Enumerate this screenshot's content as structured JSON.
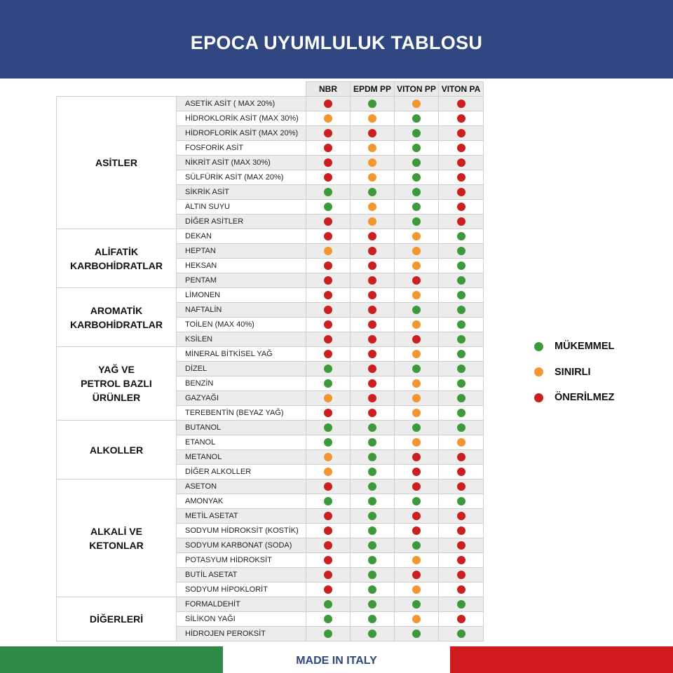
{
  "title": "EPOCA UYUMLULUK TABLOSU",
  "colors": {
    "G": "#3c9a3a",
    "O": "#f2962f",
    "R": "#cc1f1f",
    "banner": "#2f4680"
  },
  "columns": [
    "NBR",
    "EPDM PP",
    "VITON PP",
    "VITON PA"
  ],
  "groups": [
    {
      "name": "ASİTLER",
      "rows": [
        {
          "item": "ASETİK ASİT ( MAX 20%)",
          "values": [
            "R",
            "G",
            "O",
            "R"
          ]
        },
        {
          "item": "HİDROKLORİK ASİT (MAX 30%)",
          "values": [
            "O",
            "O",
            "G",
            "R"
          ]
        },
        {
          "item": "HİDROFLORİK ASİT (MAX 20%)",
          "values": [
            "R",
            "R",
            "G",
            "R"
          ]
        },
        {
          "item": "FOSFORİK ASİT",
          "values": [
            "R",
            "O",
            "G",
            "R"
          ]
        },
        {
          "item": "NİKRİT ASİT (MAX 30%)",
          "values": [
            "R",
            "O",
            "G",
            "R"
          ]
        },
        {
          "item": "SÜLFÜRİK ASİT (MAX 20%)",
          "values": [
            "R",
            "O",
            "G",
            "R"
          ]
        },
        {
          "item": "SİKRİK ASİT",
          "values": [
            "G",
            "G",
            "G",
            "R"
          ]
        },
        {
          "item": "ALTIN SUYU",
          "values": [
            "G",
            "O",
            "G",
            "R"
          ]
        },
        {
          "item": "DİĞER ASİTLER",
          "values": [
            "R",
            "O",
            "G",
            "R"
          ]
        }
      ]
    },
    {
      "name": "ALİFATİK\nKARBOHİDRATLAR",
      "rows": [
        {
          "item": "DEKAN",
          "values": [
            "R",
            "R",
            "O",
            "G"
          ]
        },
        {
          "item": "HEPTAN",
          "values": [
            "O",
            "R",
            "O",
            "G"
          ]
        },
        {
          "item": "HEKSAN",
          "values": [
            "R",
            "R",
            "O",
            "G"
          ]
        },
        {
          "item": "PENTAM",
          "values": [
            "R",
            "R",
            "R",
            "G"
          ]
        }
      ]
    },
    {
      "name": "AROMATİK\nKARBOHİDRATLAR",
      "rows": [
        {
          "item": "LİMONEN",
          "values": [
            "R",
            "R",
            "O",
            "G"
          ]
        },
        {
          "item": "NAFTALİN",
          "values": [
            "R",
            "R",
            "G",
            "G"
          ]
        },
        {
          "item": "TOİLEN (MAX 40%)",
          "values": [
            "R",
            "R",
            "O",
            "G"
          ]
        },
        {
          "item": "KSİLEN",
          "values": [
            "R",
            "R",
            "R",
            "G"
          ]
        }
      ]
    },
    {
      "name": "YAĞ VE\nPETROL BAZLI\nÜRÜNLER",
      "rows": [
        {
          "item": "MİNERAL BİTKİSEL YAĞ",
          "values": [
            "R",
            "R",
            "O",
            "G"
          ]
        },
        {
          "item": "DİZEL",
          "values": [
            "G",
            "R",
            "G",
            "G"
          ]
        },
        {
          "item": "BENZİN",
          "values": [
            "G",
            "R",
            "O",
            "G"
          ]
        },
        {
          "item": "GAZYAĞI",
          "values": [
            "O",
            "R",
            "O",
            "G"
          ]
        },
        {
          "item": "TEREBENTİN (BEYAZ YAĞ)",
          "values": [
            "R",
            "R",
            "O",
            "G"
          ]
        }
      ]
    },
    {
      "name": "ALKOLLER",
      "rows": [
        {
          "item": "BUTANOL",
          "values": [
            "G",
            "G",
            "G",
            "G"
          ]
        },
        {
          "item": "ETANOL",
          "values": [
            "G",
            "G",
            "O",
            "O"
          ]
        },
        {
          "item": "METANOL",
          "values": [
            "O",
            "G",
            "R",
            "R"
          ]
        },
        {
          "item": "DİĞER ALKOLLER",
          "values": [
            "O",
            "G",
            "R",
            "R"
          ]
        }
      ]
    },
    {
      "name": "ALKALİ VE\nKETONLAR",
      "rows": [
        {
          "item": "ASETON",
          "values": [
            "R",
            "G",
            "R",
            "R"
          ]
        },
        {
          "item": "AMONYAK",
          "values": [
            "G",
            "G",
            "G",
            "G"
          ]
        },
        {
          "item": "METİL ASETAT",
          "values": [
            "R",
            "G",
            "R",
            "R"
          ]
        },
        {
          "item": "SODYUM HİDROKSİT (KOSTİK)",
          "values": [
            "R",
            "G",
            "R",
            "R"
          ]
        },
        {
          "item": "SODYUM KARBONAT (SODA)",
          "values": [
            "R",
            "G",
            "G",
            "R"
          ]
        },
        {
          "item": "POTASYUM HİDROKSİT",
          "values": [
            "R",
            "G",
            "O",
            "R"
          ]
        },
        {
          "item": "BUTİL ASETAT",
          "values": [
            "R",
            "G",
            "R",
            "R"
          ]
        },
        {
          "item": "SODYUM HİPOKLORİT",
          "values": [
            "R",
            "G",
            "O",
            "R"
          ]
        }
      ]
    },
    {
      "name": "DİĞERLERİ",
      "rows": [
        {
          "item": "FORMALDEHİT",
          "values": [
            "G",
            "G",
            "G",
            "G"
          ]
        },
        {
          "item": "SİLİKON YAĞI",
          "values": [
            "G",
            "G",
            "O",
            "R"
          ]
        },
        {
          "item": "HİDROJEN PEROKSİT",
          "values": [
            "G",
            "G",
            "G",
            "G"
          ]
        }
      ]
    }
  ],
  "legend": [
    {
      "code": "G",
      "label": "MÜKEMMEL"
    },
    {
      "code": "O",
      "label": "SINIRLI"
    },
    {
      "code": "R",
      "label": "ÖNERİLMEZ"
    }
  ],
  "footer": {
    "text": "MADE IN ITALY"
  }
}
